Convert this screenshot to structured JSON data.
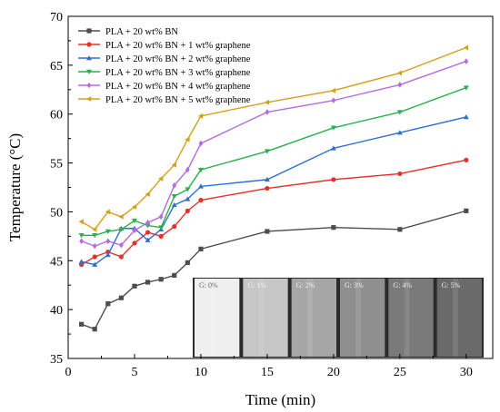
{
  "chart_data": {
    "type": "line",
    "xlabel": "Time (min)",
    "ylabel": "Temperature (°C)",
    "xlim": [
      0,
      32
    ],
    "ylim": [
      35,
      70
    ],
    "xticks": [
      0,
      5,
      10,
      15,
      20,
      25,
      30
    ],
    "yticks": [
      35,
      40,
      45,
      50,
      55,
      60,
      65,
      70
    ],
    "grid": false,
    "legend_position": "top-left",
    "x": [
      1,
      2,
      3,
      4,
      5,
      6,
      7,
      8,
      9,
      10,
      15,
      20,
      25,
      30
    ],
    "series": [
      {
        "name": "PLA + 20 wt% BN",
        "marker": "square",
        "color": "#4d4d4d",
        "values": [
          38.5,
          38.0,
          40.6,
          41.2,
          42.4,
          42.8,
          43.1,
          43.5,
          44.8,
          46.2,
          48.0,
          48.4,
          48.2,
          50.1
        ]
      },
      {
        "name": "PLA + 20 wt% BN + 1 wt% graphene",
        "marker": "circle",
        "color": "#e8302b",
        "values": [
          44.6,
          45.4,
          45.9,
          45.4,
          46.8,
          47.9,
          47.5,
          48.5,
          50.1,
          51.2,
          52.4,
          53.3,
          53.9,
          55.3
        ]
      },
      {
        "name": "PLA + 20 wt% BN + 2 wt% graphene",
        "marker": "triangle-up",
        "color": "#2f6fd1",
        "values": [
          44.9,
          44.6,
          45.6,
          48.3,
          48.3,
          47.1,
          48.2,
          50.7,
          51.3,
          52.6,
          53.3,
          56.5,
          58.1,
          59.7
        ]
      },
      {
        "name": "PLA + 20 wt% BN + 3 wt% graphene",
        "marker": "triangle-down",
        "color": "#27b04e",
        "values": [
          47.6,
          47.6,
          48.0,
          48.2,
          49.1,
          48.6,
          48.4,
          51.6,
          52.3,
          54.3,
          56.2,
          58.6,
          60.2,
          62.7
        ]
      },
      {
        "name": "PLA + 20 wt% BN + 4 wt% graphene",
        "marker": "diamond",
        "color": "#b46be0",
        "values": [
          47.0,
          46.5,
          47.0,
          46.6,
          48.1,
          48.9,
          49.5,
          52.7,
          54.3,
          57.0,
          60.2,
          61.4,
          63.0,
          65.4
        ]
      },
      {
        "name": "PLA + 20 wt% BN + 5 wt% graphene",
        "marker": "triangle-left",
        "color": "#d4a017",
        "values": [
          49.0,
          48.2,
          50.0,
          49.5,
          50.5,
          51.8,
          53.4,
          54.8,
          57.4,
          59.8,
          61.2,
          62.4,
          64.2,
          66.8
        ]
      }
    ],
    "inset_samples": [
      "G: 0%",
      "G: 1%",
      "G: 2%",
      "G: 3%",
      "G: 4%",
      "G: 5%"
    ],
    "inset_shades": [
      "#efefef",
      "#c6c6c6",
      "#a6a6a6",
      "#8f8f8f",
      "#7a7a7a",
      "#6a6a6a"
    ]
  }
}
